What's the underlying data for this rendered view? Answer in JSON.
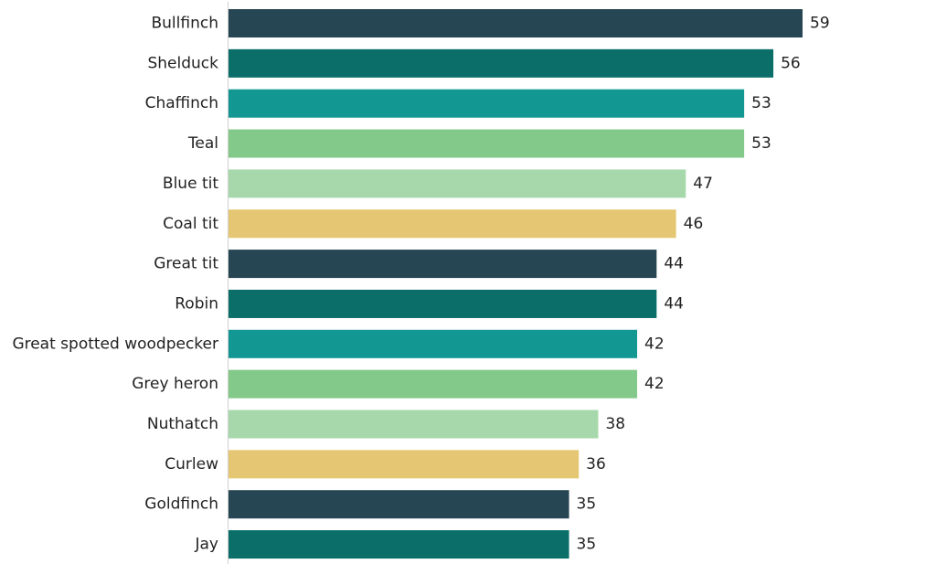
{
  "chart_data": {
    "type": "bar",
    "orientation": "horizontal",
    "title": "",
    "xlabel": "",
    "ylabel": "",
    "xlim": [
      0,
      59
    ],
    "grid": false,
    "legend": "none",
    "categories": [
      "Bullfinch",
      "Shelduck",
      "Chaffinch",
      "Teal",
      "Blue tit",
      "Coal tit",
      "Great tit",
      "Robin",
      "Great spotted woodpecker",
      "Grey heron",
      "Nuthatch",
      "Curlew",
      "Goldfinch",
      "Jay"
    ],
    "values": [
      59,
      56,
      53,
      53,
      47,
      46,
      44,
      44,
      42,
      42,
      38,
      36,
      35,
      35
    ],
    "value_labels": [
      "59",
      "56",
      "53",
      "53",
      "47",
      "46",
      "44",
      "44",
      "42",
      "42",
      "38",
      "36",
      "35",
      "35"
    ],
    "colors": [
      "#264653",
      "#0b6e69",
      "#129792",
      "#83c98a",
      "#a6d8ab",
      "#e5c672",
      "#264653",
      "#0b6e69",
      "#129792",
      "#83c98a",
      "#a6d8ab",
      "#e5c672",
      "#264653",
      "#0b6e69"
    ]
  }
}
